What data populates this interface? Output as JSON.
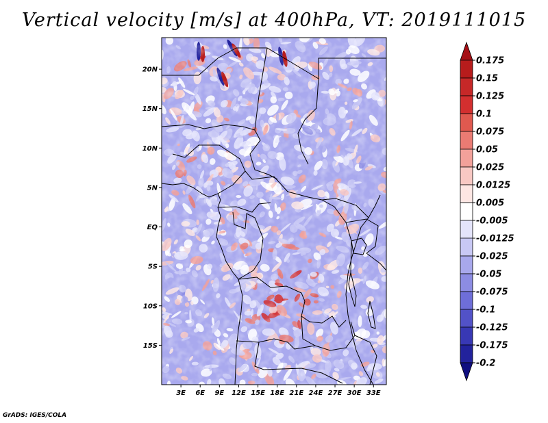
{
  "title": "Vertical velocity [m/s] at 400hPa, VT: 2019111015",
  "credit": "GrADS: IGES/COLA",
  "chart_data": {
    "type": "heatmap",
    "title": "Vertical velocity [m/s] at 400hPa, VT: 2019111015",
    "variable": "Vertical velocity",
    "units": "m/s",
    "level": "400hPa",
    "valid_time": "2019111015",
    "x_axis": {
      "range": [
        0,
        35
      ],
      "ticks": [
        3,
        6,
        9,
        12,
        15,
        18,
        21,
        24,
        27,
        30,
        33
      ],
      "tick_labels": [
        "3E",
        "6E",
        "9E",
        "12E",
        "15E",
        "18E",
        "21E",
        "24E",
        "27E",
        "30E",
        "33E"
      ]
    },
    "y_axis": {
      "range": [
        -20,
        24
      ],
      "ticks": [
        20,
        15,
        10,
        5,
        0,
        -5,
        -10,
        -15
      ],
      "tick_labels": [
        "20N",
        "15N",
        "10N",
        "5N",
        "EQ",
        "5S",
        "10S",
        "15S"
      ]
    },
    "colorbar": {
      "levels": [
        "0.175",
        "0.15",
        "0.125",
        "0.1",
        "0.075",
        "0.05",
        "0.025",
        "0.0125",
        "0.005",
        "-0.005",
        "-0.0125",
        "-0.025",
        "-0.05",
        "-0.075",
        "-0.1",
        "-0.125",
        "-0.175",
        "-0.2"
      ],
      "colors": [
        "#a50f15",
        "#b71c1c",
        "#c62828",
        "#d32f2f",
        "#e0594f",
        "#ea7b73",
        "#f2a19a",
        "#f8c8c3",
        "#fde6e3",
        "#ffffff",
        "#e4e4fb",
        "#c8c8f4",
        "#a8a8ec",
        "#8c8ce3",
        "#6e6ed8",
        "#5252c8",
        "#3838b4",
        "#22229c",
        "#100f80"
      ]
    }
  }
}
